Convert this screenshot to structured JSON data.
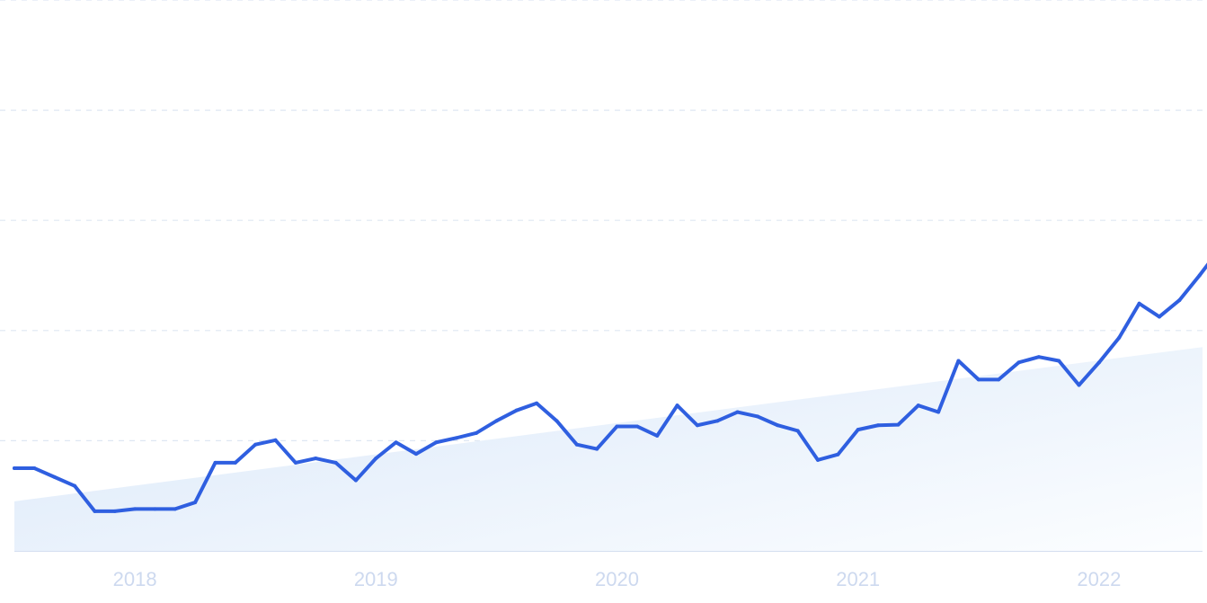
{
  "chart_data": {
    "type": "line",
    "title": "",
    "xlabel": "",
    "ylabel": "",
    "x_ticks": [
      "2018",
      "2019",
      "2020",
      "2021",
      "2022"
    ],
    "grid": "horizontal-dashed",
    "ylim": [
      0,
      100
    ],
    "colors": {
      "line": "#2f5fe0",
      "gridline": "#dfe7f3",
      "axis": "#d4def0",
      "tick_text": "#cdd9ef",
      "trend_fill_start": "#dce9f9",
      "trend_fill_end": "#fbfdff"
    },
    "trend": {
      "start": 9,
      "end": 37
    },
    "series": [
      {
        "x": [
          "2017-07",
          "2017-08",
          "2017-09",
          "2017-10",
          "2017-11",
          "2017-12",
          "2018-01",
          "2018-02",
          "2018-03",
          "2018-04",
          "2018-05",
          "2018-06",
          "2018-07",
          "2018-08",
          "2018-09",
          "2018-10",
          "2018-11",
          "2018-12",
          "2019-01",
          "2019-02",
          "2019-03",
          "2019-04",
          "2019-05",
          "2019-06",
          "2019-07",
          "2019-08",
          "2019-09",
          "2019-10",
          "2019-11",
          "2019-12",
          "2020-01",
          "2020-02",
          "2020-03",
          "2020-04",
          "2020-05",
          "2020-06",
          "2020-07",
          "2020-08",
          "2020-09",
          "2020-10",
          "2020-11",
          "2020-12",
          "2021-01",
          "2021-02",
          "2021-03",
          "2021-04",
          "2021-05",
          "2021-06",
          "2021-07",
          "2021-08",
          "2021-09",
          "2021-10",
          "2021-11",
          "2021-12",
          "2022-01",
          "2022-02",
          "2022-03",
          "2022-04",
          "2022-05",
          "2022-06",
          "2022-07"
        ],
        "values": [
          15,
          15,
          13.4,
          11.8,
          7.2,
          7.2,
          7.6,
          7.6,
          7.6,
          8.8,
          16,
          16,
          19.3,
          20.1,
          16,
          16.8,
          16,
          12.8,
          16.8,
          19.7,
          17.6,
          19.7,
          20.5,
          21.4,
          23.6,
          25.5,
          26.8,
          23.6,
          19.3,
          18.5,
          22.6,
          22.6,
          20.9,
          26.4,
          22.8,
          23.6,
          25.2,
          24.4,
          22.8,
          21.8,
          16.5,
          17.5,
          22,
          22.8,
          22.9,
          26.4,
          25.2,
          34.5,
          31.1,
          31.1,
          34.2,
          35.2,
          34.5,
          30.1,
          34.2,
          38.7,
          44.9,
          42.5,
          45.5,
          50,
          54.8
        ]
      }
    ]
  }
}
